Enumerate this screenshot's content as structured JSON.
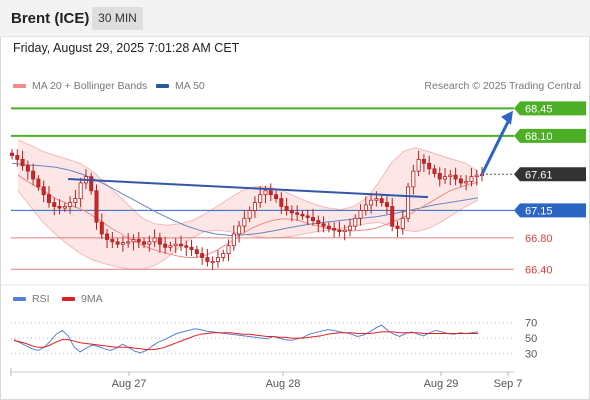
{
  "header": {
    "title": "Brent (ICE)",
    "timeframe": "30 MIN"
  },
  "datetime": "Friday, August 29, 2025 7:01:28 AM CET",
  "legend": {
    "bollinger": "MA 20 + Bollinger Bands",
    "ma50": "MA 50",
    "copyright": "Research © 2025 Trading Central",
    "rsi": "RSI",
    "rsi_ma": "9MA"
  },
  "colors": {
    "bollinger": "#f28a8a",
    "ma50": "#2a5a9e",
    "resistance": "#4caf25",
    "support_line": "#d94040",
    "pivot": "#2b66c4",
    "current": "#333333",
    "rsi": "#5a7fd6",
    "rsi_ma": "#e02020"
  },
  "chart_data": [
    {
      "type": "candlestick",
      "x_ticks": [
        "Aug 27",
        "Aug 28",
        "Aug 29",
        "Sep 7"
      ],
      "ylim": [
        66.2,
        68.62
      ],
      "levels": [
        {
          "value": 68.45,
          "label": "68.45",
          "kind": "resistance"
        },
        {
          "value": 68.1,
          "label": "68.10",
          "kind": "resistance"
        },
        {
          "value": 67.61,
          "label": "67.61",
          "kind": "current"
        },
        {
          "value": 67.15,
          "label": "67.15",
          "kind": "pivot"
        },
        {
          "value": 66.8,
          "label": "66.80",
          "kind": "support"
        },
        {
          "value": 66.4,
          "label": "66.40",
          "kind": "support"
        }
      ],
      "close": [
        67.85,
        67.8,
        67.72,
        67.65,
        67.55,
        67.45,
        67.35,
        67.25,
        67.2,
        67.18,
        67.2,
        67.25,
        67.3,
        67.5,
        67.58,
        67.4,
        67.0,
        66.85,
        66.78,
        66.75,
        66.72,
        66.74,
        66.75,
        66.78,
        66.75,
        66.72,
        66.75,
        66.8,
        66.72,
        66.68,
        66.7,
        66.72,
        66.7,
        66.68,
        66.65,
        66.6,
        66.55,
        66.5,
        66.5,
        66.55,
        66.6,
        66.7,
        66.85,
        66.95,
        67.05,
        67.15,
        67.25,
        67.35,
        67.4,
        67.35,
        67.3,
        67.2,
        67.15,
        67.12,
        67.1,
        67.08,
        67.06,
        67.02,
        66.98,
        66.95,
        66.92,
        66.9,
        66.88,
        66.9,
        66.95,
        67.05,
        67.15,
        67.22,
        67.28,
        67.3,
        67.25,
        67.2,
        66.95,
        66.92,
        67.05,
        67.45,
        67.65,
        67.8,
        67.75,
        67.68,
        67.62,
        67.55,
        67.58,
        67.6,
        67.55,
        67.5,
        67.52,
        67.58,
        67.6,
        67.61
      ],
      "ma20": [
        67.6,
        67.52,
        67.45,
        67.38,
        67.3,
        67.25,
        67.2,
        67.15,
        67.08,
        67.0,
        66.92,
        66.85,
        66.78,
        66.72,
        66.67,
        66.63,
        66.6,
        66.57,
        66.55,
        66.55,
        66.58,
        66.63,
        66.7,
        66.78,
        66.86,
        66.93,
        66.98,
        67.02,
        67.04,
        67.04,
        67.02,
        66.98,
        66.95,
        66.92,
        66.9,
        66.89,
        66.89,
        66.9,
        66.92,
        66.96,
        67.01,
        67.06,
        67.12,
        67.19,
        67.26,
        67.33,
        67.4,
        67.44,
        67.48,
        67.51
      ],
      "bb_upper": [
        68.05,
        67.98,
        67.9,
        67.85,
        67.8,
        67.75,
        67.65,
        67.5,
        67.35,
        67.2,
        67.05,
        66.98,
        66.96,
        66.98,
        67.02,
        67.1,
        67.2,
        67.3,
        67.4,
        67.45,
        67.45,
        67.42,
        67.35,
        67.28,
        67.22,
        67.18,
        67.16,
        67.2,
        67.3,
        67.5,
        67.75,
        67.9,
        67.95,
        67.9,
        67.85,
        67.8,
        67.75,
        67.65
      ],
      "bb_lower": [
        67.4,
        67.2,
        67.0,
        66.85,
        66.72,
        66.6,
        66.52,
        66.47,
        66.43,
        66.4,
        66.4,
        66.45,
        66.55,
        66.68,
        66.8,
        66.88,
        66.9,
        66.88,
        66.85,
        66.82,
        66.8,
        66.8,
        66.82,
        66.85,
        66.88,
        66.9,
        66.92,
        66.95,
        66.98,
        67.0,
        66.95,
        66.9,
        66.88,
        66.92,
        67.0,
        67.1,
        67.2,
        67.28
      ],
      "ma50": [
        67.75,
        67.73,
        67.72,
        67.7,
        67.66,
        67.6,
        67.52,
        67.42,
        67.32,
        67.22,
        67.12,
        67.03,
        66.95,
        66.89,
        66.85,
        66.83,
        66.84,
        66.86,
        66.89,
        66.93,
        66.96,
        66.99,
        67.01,
        67.03,
        67.05,
        67.07,
        67.1,
        67.14,
        67.18,
        67.22,
        67.25,
        67.28,
        67.31
      ],
      "rsi": [
        48,
        44,
        40,
        36,
        34,
        38,
        46,
        55,
        60,
        53,
        38,
        32,
        37,
        41,
        39,
        36,
        34,
        37,
        42,
        38,
        33,
        31,
        34,
        40,
        45,
        48,
        52,
        56,
        58,
        60,
        62,
        61,
        59,
        58,
        57,
        56,
        55,
        54,
        53,
        52,
        51,
        50,
        49,
        52,
        50,
        48,
        47,
        49,
        51,
        55,
        57,
        59,
        61,
        60,
        58,
        57,
        55,
        52,
        54,
        58,
        63,
        67,
        60,
        55,
        52,
        56,
        58,
        55,
        53,
        57,
        60,
        58,
        56,
        55,
        57,
        56,
        57,
        58
      ],
      "rsi_ma": [
        47,
        45,
        43,
        40,
        38,
        38,
        41,
        45,
        48,
        48,
        46,
        44,
        43,
        42,
        41,
        40,
        39,
        38,
        38,
        38,
        37,
        36,
        35,
        35,
        36,
        38,
        41,
        44,
        47,
        50,
        53,
        55,
        56,
        57,
        57,
        57,
        57,
        56,
        55,
        55,
        54,
        53,
        52,
        52,
        51,
        51,
        50,
        50,
        50,
        51,
        52,
        53,
        55,
        56,
        57,
        57,
        57,
        56,
        56,
        56,
        57,
        58,
        58,
        58,
        57,
        57,
        57,
        57,
        56,
        56,
        56,
        56,
        56,
        56,
        56,
        56,
        56,
        56
      ],
      "rsi_levels": [
        70,
        50,
        30
      ]
    }
  ]
}
